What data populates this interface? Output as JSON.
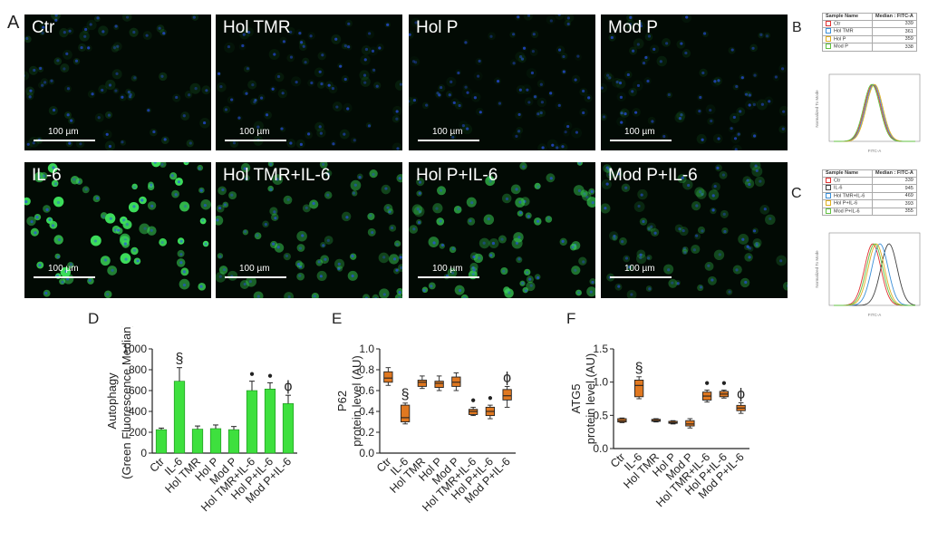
{
  "panel_letters": {
    "a": "A",
    "b": "B",
    "c": "C",
    "d": "D",
    "e": "E",
    "f": "F"
  },
  "micrographs": [
    {
      "label": "Ctr",
      "scale": "100 µm",
      "intensity": 0.12
    },
    {
      "label": "Hol TMR",
      "scale": "100 µm",
      "intensity": 0.08
    },
    {
      "label": "Hol P",
      "scale": "100 µm",
      "intensity": 0.06
    },
    {
      "label": "Mod P",
      "scale": "100 µm",
      "intensity": 0.08
    },
    {
      "label": "IL-6",
      "scale": "100 µm",
      "intensity": 0.85
    },
    {
      "label": "Hol TMR+IL-6",
      "scale": "100 µm",
      "intensity": 0.45
    },
    {
      "label": "Hol P+IL-6",
      "scale": "100 µm",
      "intensity": 0.55
    },
    {
      "label": "Mod P+IL-6",
      "scale": "100 µm",
      "intensity": 0.25
    }
  ],
  "flow_b": {
    "headers": [
      "Sample Name",
      "Median : FITC-A"
    ],
    "rows": [
      {
        "name": "Ctr",
        "value": "339",
        "color": "#e03030"
      },
      {
        "name": "Hol TMR",
        "value": "361",
        "color": "#3a8fd8"
      },
      {
        "name": "Hol P",
        "value": "359",
        "color": "#e0b020"
      },
      {
        "name": "Mod P",
        "value": "338",
        "color": "#60c040"
      }
    ],
    "ylabel": "Normalized To Mode",
    "xlabel": "FITC-A"
  },
  "flow_c": {
    "headers": [
      "Sample Name",
      "Median : FITC-A"
    ],
    "rows": [
      {
        "name": "Ctr",
        "value": "339",
        "color": "#e03030"
      },
      {
        "name": "IL-6",
        "value": "945",
        "color": "#404040"
      },
      {
        "name": "Hol TMR+IL-6",
        "value": "469",
        "color": "#3a8fd8"
      },
      {
        "name": "Hol P+IL-6",
        "value": "393",
        "color": "#e0b020"
      },
      {
        "name": "Mod P+IL-6",
        "value": "355",
        "color": "#60c040"
      }
    ],
    "ylabel": "Normalized To Mode",
    "xlabel": "FITC-A"
  },
  "chart_data": [
    {
      "type": "bar",
      "panel": "D",
      "ylabel_line1": "Autophagy",
      "ylabel_line2": "(Green Fluorescence Median)",
      "ylim": [
        0,
        1000
      ],
      "yticks": [
        "0",
        "200",
        "400",
        "600",
        "800",
        "1000"
      ],
      "categories": [
        "Ctr",
        "IL-6",
        "Hol TMR",
        "Hol P",
        "Mod P",
        "Hol TMR+IL-6",
        "Hol P+IL-6",
        "Mod P+IL-6"
      ],
      "values": [
        225,
        690,
        230,
        235,
        225,
        600,
        615,
        475
      ],
      "errors": [
        15,
        130,
        30,
        35,
        30,
        90,
        60,
        80
      ],
      "markers": [
        "",
        "§",
        "",
        "",
        "",
        "●",
        "●",
        "ϕ"
      ],
      "color": "#3ee03e"
    },
    {
      "type": "box",
      "panel": "E",
      "ylabel_line1": "P62",
      "ylabel_line2": "protein level (AU)",
      "ylim": [
        0,
        1.0
      ],
      "yticks": [
        "0.0",
        "0.2",
        "0.4",
        "0.6",
        "0.8",
        "1.0"
      ],
      "categories": [
        "Ctr",
        "IL-6",
        "Hol TMR",
        "Hol P",
        "Mod P",
        "Hol TMR+IL-6",
        "Hol P+IL-6",
        "Mod P+IL-6"
      ],
      "boxes": [
        {
          "min": 0.65,
          "q1": 0.68,
          "median": 0.72,
          "q3": 0.78,
          "max": 0.82
        },
        {
          "min": 0.28,
          "q1": 0.3,
          "median": 0.34,
          "q3": 0.46,
          "max": 0.48
        },
        {
          "min": 0.62,
          "q1": 0.64,
          "median": 0.68,
          "q3": 0.7,
          "max": 0.74
        },
        {
          "min": 0.6,
          "q1": 0.63,
          "median": 0.67,
          "q3": 0.69,
          "max": 0.74
        },
        {
          "min": 0.6,
          "q1": 0.64,
          "median": 0.68,
          "q3": 0.73,
          "max": 0.77
        },
        {
          "min": 0.36,
          "q1": 0.37,
          "median": 0.4,
          "q3": 0.42,
          "max": 0.44
        },
        {
          "min": 0.33,
          "q1": 0.36,
          "median": 0.4,
          "q3": 0.44,
          "max": 0.46
        },
        {
          "min": 0.44,
          "q1": 0.51,
          "median": 0.55,
          "q3": 0.61,
          "max": 0.64
        }
      ],
      "markers": [
        "",
        "§",
        "",
        "",
        "",
        "●",
        "●",
        "ϕ"
      ],
      "color": "#e07820"
    },
    {
      "type": "box",
      "panel": "F",
      "ylabel_line1": "ATG5",
      "ylabel_line2": "protein level (AU)",
      "ylim": [
        0,
        1.5
      ],
      "yticks": [
        "0.0",
        "0.5",
        "1.0",
        "1.5"
      ],
      "categories": [
        "Ctr",
        "IL-6",
        "Hol TMR",
        "Hol P",
        "Mod P",
        "Hol TMR+IL-6",
        "Hol P+IL-6",
        "Mod P+IL-6"
      ],
      "boxes": [
        {
          "min": 0.39,
          "q1": 0.4,
          "median": 0.42,
          "q3": 0.45,
          "max": 0.46
        },
        {
          "min": 0.75,
          "q1": 0.78,
          "median": 0.95,
          "q3": 1.03,
          "max": 1.08
        },
        {
          "min": 0.4,
          "q1": 0.41,
          "median": 0.42,
          "q3": 0.44,
          "max": 0.45
        },
        {
          "min": 0.37,
          "q1": 0.38,
          "median": 0.39,
          "q3": 0.41,
          "max": 0.42
        },
        {
          "min": 0.31,
          "q1": 0.34,
          "median": 0.37,
          "q3": 0.42,
          "max": 0.45
        },
        {
          "min": 0.7,
          "q1": 0.73,
          "median": 0.79,
          "q3": 0.85,
          "max": 0.88
        },
        {
          "min": 0.76,
          "q1": 0.78,
          "median": 0.82,
          "q3": 0.86,
          "max": 0.88
        },
        {
          "min": 0.53,
          "q1": 0.57,
          "median": 0.61,
          "q3": 0.65,
          "max": 0.69
        }
      ],
      "markers": [
        "",
        "§",
        "",
        "",
        "",
        "●",
        "●",
        "ϕ"
      ],
      "color": "#e07820"
    }
  ]
}
